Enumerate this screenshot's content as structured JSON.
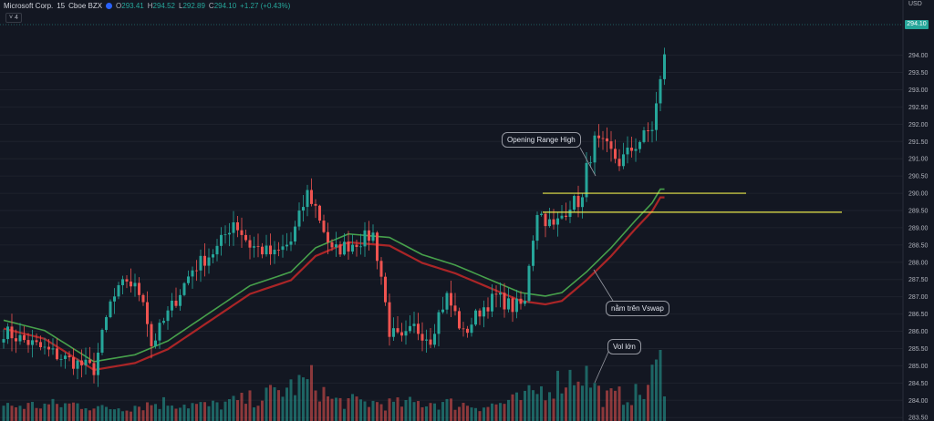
{
  "legend": {
    "symbol": "Microsoft Corp.",
    "interval": "15",
    "exchange": "Cboe BZX",
    "o_label": "O",
    "o_value": "293.41",
    "h_label": "H",
    "h_value": "294.52",
    "l_label": "L",
    "l_value": "292.89",
    "c_label": "C",
    "c_value": "294.10",
    "change": "+1.27 (+0.43%)",
    "indicator_count": "˅ 4"
  },
  "axis": {
    "currency": "USD",
    "last_price_tag": "294.10"
  },
  "annotations": {
    "opening_range": "Opening Range High",
    "vswap": "nằm trên Vswap",
    "volume": "Vol lớn"
  },
  "colors": {
    "up": "#26a69a",
    "down": "#ef5350",
    "level": "#e9e94a",
    "vwap": "#4caf50",
    "bg": "#131722"
  },
  "chart_data": {
    "type": "candlestick",
    "ylim": [
      283.4,
      295.6
    ],
    "y_ticks": [
      "294.00",
      "293.50",
      "293.00",
      "292.50",
      "292.00",
      "291.50",
      "291.00",
      "290.50",
      "290.00",
      "289.50",
      "289.00",
      "288.50",
      "288.00",
      "287.50",
      "287.00",
      "286.50",
      "286.00",
      "285.50",
      "285.00",
      "284.50",
      "284.00",
      "283.50"
    ],
    "levels": [
      290.0,
      289.45
    ],
    "series_anchors": {
      "price": [
        [
          0,
          286.0
        ],
        [
          15,
          285.2
        ],
        [
          22,
          284.9
        ],
        [
          26,
          286.8
        ],
        [
          30,
          287.5
        ],
        [
          34,
          287.0
        ],
        [
          36,
          285.6
        ],
        [
          40,
          286.5
        ],
        [
          46,
          287.8
        ],
        [
          52,
          288.4
        ],
        [
          56,
          289.2
        ],
        [
          60,
          288.5
        ],
        [
          66,
          288.2
        ],
        [
          70,
          288.6
        ],
        [
          74,
          290.0
        ],
        [
          76,
          289.6
        ],
        [
          80,
          288.3
        ],
        [
          86,
          288.6
        ],
        [
          90,
          288.8
        ],
        [
          92,
          287.6
        ],
        [
          94,
          286.0
        ],
        [
          97,
          285.7
        ],
        [
          100,
          286.1
        ],
        [
          104,
          285.8
        ],
        [
          106,
          286.5
        ],
        [
          108,
          287.0
        ],
        [
          110,
          286.5
        ],
        [
          112,
          285.9
        ],
        [
          116,
          286.6
        ],
        [
          120,
          287.0
        ],
        [
          124,
          286.7
        ],
        [
          127,
          286.8
        ],
        [
          128,
          288.0
        ],
        [
          130,
          289.5
        ],
        [
          134,
          289.0
        ],
        [
          138,
          289.7
        ],
        [
          141,
          289.8
        ],
        [
          142,
          290.7
        ],
        [
          144,
          291.5
        ],
        [
          147,
          291.3
        ],
        [
          150,
          290.9
        ],
        [
          154,
          291.4
        ],
        [
          158,
          291.9
        ],
        [
          160,
          293.2
        ],
        [
          161,
          294.1
        ]
      ],
      "vwap": [
        [
          0,
          286.2
        ],
        [
          10,
          285.9
        ],
        [
          22,
          285.0
        ],
        [
          32,
          285.2
        ],
        [
          40,
          285.6
        ],
        [
          50,
          286.4
        ],
        [
          60,
          287.2
        ],
        [
          70,
          287.6
        ],
        [
          76,
          288.3
        ],
        [
          84,
          288.7
        ],
        [
          94,
          288.6
        ],
        [
          102,
          288.1
        ],
        [
          110,
          287.8
        ],
        [
          118,
          287.4
        ],
        [
          126,
          287.0
        ],
        [
          132,
          286.9
        ],
        [
          136,
          287.0
        ],
        [
          142,
          287.6
        ],
        [
          148,
          288.3
        ],
        [
          154,
          289.1
        ],
        [
          158,
          289.6
        ],
        [
          160,
          290.0
        ]
      ]
    },
    "volume_anchors": [
      [
        0,
        0.22
      ],
      [
        20,
        0.25
      ],
      [
        24,
        0.18
      ],
      [
        40,
        0.28
      ],
      [
        50,
        0.22
      ],
      [
        62,
        0.34
      ],
      [
        75,
        0.6
      ],
      [
        80,
        0.3
      ],
      [
        96,
        0.25
      ],
      [
        104,
        0.28
      ],
      [
        118,
        0.22
      ],
      [
        126,
        0.32
      ],
      [
        141,
        0.75
      ],
      [
        146,
        0.35
      ],
      [
        156,
        0.4
      ],
      [
        160,
        0.9
      ],
      [
        161,
        0.62
      ]
    ]
  }
}
